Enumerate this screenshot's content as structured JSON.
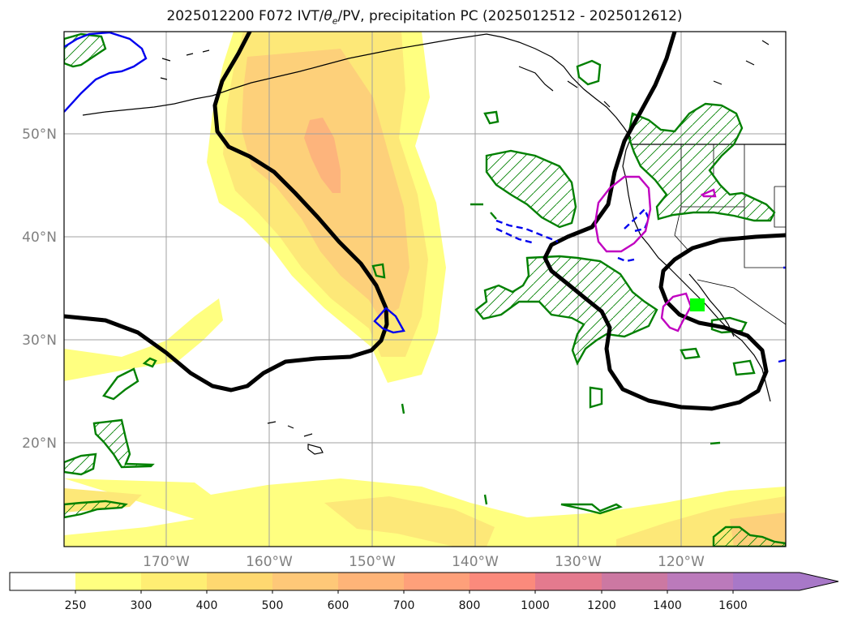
{
  "title_prefix": "2025012200 F072 IVT/",
  "title_theta": "θ",
  "title_sub": "e",
  "title_suffix": "/PV, precipitation PC (2025012512 - 2025012612)",
  "map": {
    "lat_labels": [
      "50°N",
      "40°N",
      "30°N",
      "20°N"
    ],
    "lon_labels": [
      "170°W",
      "160°W",
      "150°W",
      "140°W",
      "130°W",
      "120°W"
    ],
    "gridlines": true
  },
  "colorbar": {
    "ticks": [
      "250",
      "300",
      "400",
      "500",
      "600",
      "700",
      "800",
      "1000",
      "1200",
      "1400",
      "1600"
    ],
    "colors": [
      "#ffff80",
      "#ffee73",
      "#fed870",
      "#fec878",
      "#feb478",
      "#fea07a",
      "#fb8a7c",
      "#e47a8e",
      "#cc78a2",
      "#bb7abb",
      "#a878c8"
    ],
    "extend_color": "#a878c8",
    "extend": "max"
  },
  "colors": {
    "ivt_light": "#ffff80",
    "ivt_mid": "#fde878",
    "ivt_high": "#fdd07a",
    "ivt_peak": "#fdb47c",
    "theta_contour": "#000000",
    "pv_contour": "#0000ee",
    "precip_contour": "#008000",
    "magenta_contour": "#c000c0",
    "green_marker": "#00ff00"
  }
}
